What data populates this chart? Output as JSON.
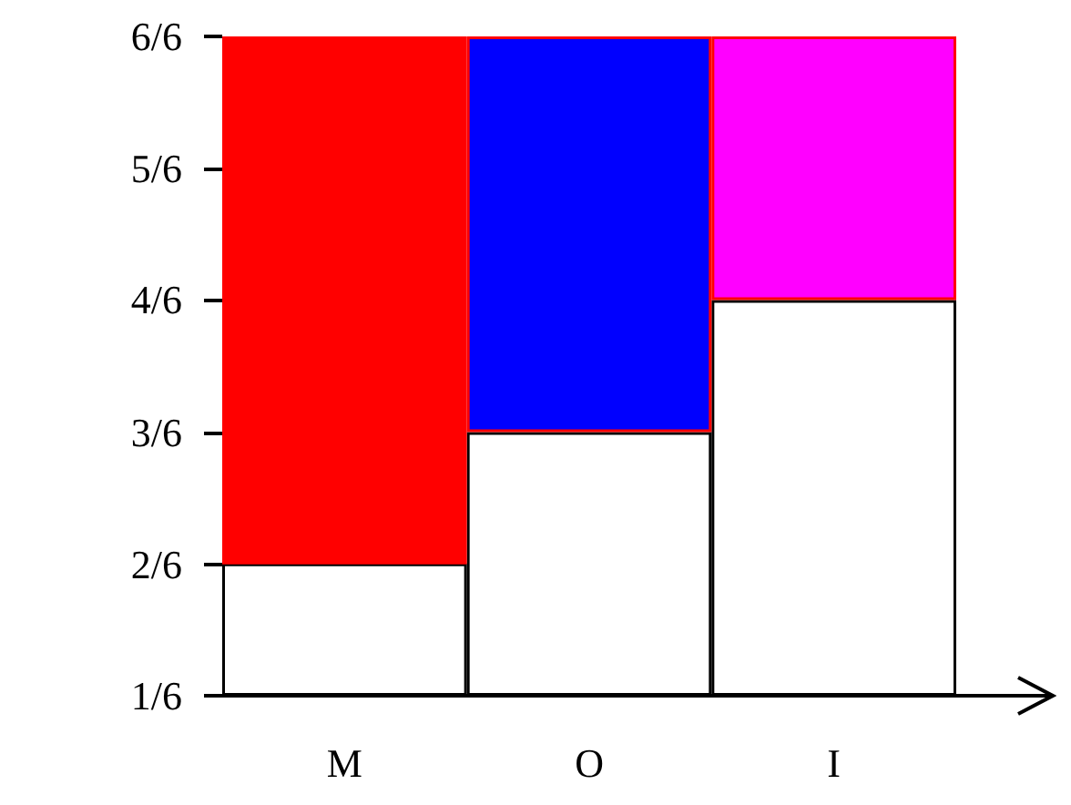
{
  "chart_data": {
    "type": "bar",
    "categories": [
      "M",
      "O",
      "I"
    ],
    "stacked": true,
    "series": [
      {
        "color": "#ffffff",
        "base": [
          0.167,
          0.167,
          0.167
        ],
        "values": [
          0.167,
          0.333,
          0.5
        ]
      },
      {
        "colors": [
          "#ff0000",
          "#0000ff",
          "#ff00ff"
        ],
        "base": [
          0.333,
          0.5,
          0.667
        ],
        "values": [
          0.667,
          0.5,
          0.333
        ]
      }
    ],
    "ylim": [
      0.167,
      1
    ],
    "yticks": [
      {
        "value": 0.167,
        "label": "1/6"
      },
      {
        "value": 0.333,
        "label": "2/6"
      },
      {
        "value": 0.5,
        "label": "3/6"
      },
      {
        "value": 0.667,
        "label": "4/6"
      },
      {
        "value": 0.833,
        "label": "5/6"
      },
      {
        "value": 1,
        "label": "6/6"
      }
    ],
    "grid": false
  }
}
